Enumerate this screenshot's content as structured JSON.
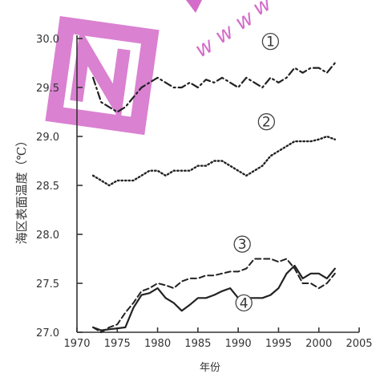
{
  "chart_data": {
    "type": "line",
    "xlabel": "年份",
    "ylabel": "海区表面温度（℃）",
    "xlim": [
      1970,
      2005
    ],
    "ylim": [
      27.0,
      30.0
    ],
    "xticks": [
      1970,
      1975,
      1980,
      1985,
      1990,
      1995,
      2000,
      2005
    ],
    "yticks": [
      27.0,
      27.5,
      28.0,
      28.5,
      29.0,
      29.5,
      30.0
    ],
    "ytick_labels": [
      "27.0",
      "27.5",
      "28.0",
      "28.5",
      "29.0",
      "29.5",
      "30.0"
    ],
    "grid": false,
    "series": [
      {
        "name": "1",
        "style": "dash-dot",
        "color": "#222222",
        "x": [
          1972,
          1973,
          1974,
          1975,
          1976,
          1977,
          1978,
          1979,
          1980,
          1981,
          1982,
          1983,
          1984,
          1985,
          1986,
          1987,
          1988,
          1989,
          1990,
          1991,
          1992,
          1993,
          1994,
          1995,
          1996,
          1997,
          1998,
          1999,
          2000,
          2001,
          2002
        ],
        "y": [
          29.6,
          29.35,
          29.3,
          29.25,
          29.3,
          29.4,
          29.5,
          29.55,
          29.6,
          29.55,
          29.5,
          29.5,
          29.55,
          29.5,
          29.58,
          29.55,
          29.6,
          29.55,
          29.5,
          29.6,
          29.55,
          29.5,
          29.6,
          29.55,
          29.6,
          29.7,
          29.65,
          29.7,
          29.7,
          29.65,
          29.75
        ]
      },
      {
        "name": "2",
        "style": "dotted",
        "color": "#222222",
        "x": [
          1972,
          1973,
          1974,
          1975,
          1976,
          1977,
          1978,
          1979,
          1980,
          1981,
          1982,
          1983,
          1984,
          1985,
          1986,
          1987,
          1988,
          1989,
          1990,
          1991,
          1992,
          1993,
          1994,
          1995,
          1996,
          1997,
          1998,
          1999,
          2000,
          2001,
          2002
        ],
        "y": [
          28.6,
          28.55,
          28.5,
          28.55,
          28.55,
          28.55,
          28.6,
          28.65,
          28.65,
          28.6,
          28.65,
          28.65,
          28.65,
          28.7,
          28.7,
          28.75,
          28.75,
          28.7,
          28.65,
          28.6,
          28.65,
          28.7,
          28.8,
          28.85,
          28.9,
          28.95,
          28.95,
          28.95,
          28.97,
          29.0,
          28.97
        ]
      },
      {
        "name": "3",
        "style": "dashed",
        "color": "#222222",
        "x": [
          1972,
          1973,
          1974,
          1975,
          1976,
          1977,
          1978,
          1979,
          1980,
          1981,
          1982,
          1983,
          1984,
          1985,
          1986,
          1987,
          1988,
          1989,
          1990,
          1991,
          1992,
          1993,
          1994,
          1995,
          1996,
          1997,
          1998,
          1999,
          2000,
          2001,
          2002
        ],
        "y": [
          27.05,
          27.0,
          27.05,
          27.08,
          27.2,
          27.3,
          27.42,
          27.45,
          27.5,
          27.48,
          27.45,
          27.52,
          27.55,
          27.55,
          27.58,
          27.58,
          27.6,
          27.62,
          27.62,
          27.65,
          27.75,
          27.75,
          27.75,
          27.72,
          27.75,
          27.65,
          27.5,
          27.5,
          27.45,
          27.5,
          27.6
        ]
      },
      {
        "name": "4",
        "style": "solid",
        "color": "#222222",
        "x": [
          1972,
          1973,
          1974,
          1975,
          1976,
          1977,
          1978,
          1979,
          1980,
          1981,
          1982,
          1983,
          1984,
          1985,
          1986,
          1987,
          1988,
          1989,
          1990,
          1991,
          1992,
          1993,
          1994,
          1995,
          1996,
          1997,
          1998,
          1999,
          2000,
          2001,
          2002
        ],
        "y": [
          27.05,
          27.02,
          27.03,
          27.04,
          27.05,
          27.25,
          27.38,
          27.4,
          27.45,
          27.35,
          27.3,
          27.22,
          27.28,
          27.35,
          27.35,
          27.38,
          27.42,
          27.45,
          27.35,
          27.35,
          27.35,
          27.35,
          27.38,
          27.45,
          27.6,
          27.68,
          27.55,
          27.6,
          27.6,
          27.55,
          27.65
        ]
      }
    ]
  }
}
